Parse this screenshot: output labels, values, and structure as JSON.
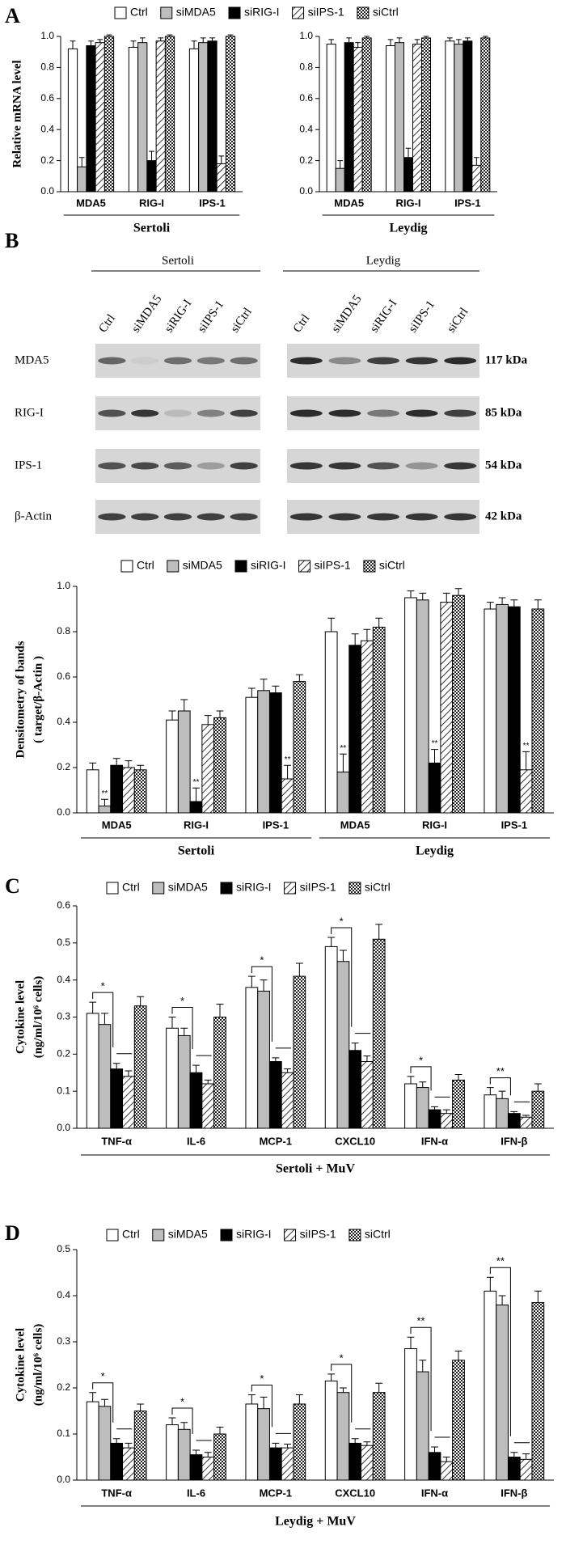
{
  "panel_labels": [
    "A",
    "B",
    "C",
    "D"
  ],
  "blot": {
    "groups": [
      {
        "name": "Sertoli",
        "lanes": [
          "Ctrl",
          "siMDA5",
          "siRIG-I",
          "siIPS-1",
          "siCtrl"
        ]
      },
      {
        "name": "Leydig",
        "lanes": [
          "Ctrl",
          "siMDA5",
          "siRIG-I",
          "siIPS-1",
          "siCtrl"
        ]
      }
    ],
    "rows": [
      {
        "name": "MDA5",
        "size": "117 kDa"
      },
      {
        "name": "RIG-I",
        "size": "85 kDa"
      },
      {
        "name": "IPS-1",
        "size": "54 kDa"
      },
      {
        "name": "β-Actin",
        "size": "42 kDa"
      }
    ]
  },
  "chart_data": [
    {
      "type": "bar",
      "ylabel": "Relative mRNA level",
      "groups": [
        {
          "name": "Sertoli",
          "categories": [
            "MDA5",
            "RIG-I",
            "IPS-1"
          ]
        },
        {
          "name": "Leydig",
          "categories": [
            "MDA5",
            "RIG-I",
            "IPS-1"
          ]
        }
      ],
      "ylim": [
        0,
        1
      ],
      "yticks": [
        {
          "value": 0,
          "label": "0.0"
        },
        0.2,
        0.4,
        0.6,
        0.8,
        {
          "value": 1,
          "label": "1.0"
        }
      ],
      "series": [
        {
          "name": "Ctrl",
          "color": "#ffffff",
          "values": [
            0.92,
            0.93,
            0.92,
            0.95,
            0.94,
            0.97
          ],
          "errors": [
            0.05,
            0.04,
            0.05,
            0.03,
            0.04,
            0.02
          ]
        },
        {
          "name": "siMDA5",
          "color": "#bdbdbd",
          "values": [
            0.16,
            0.96,
            0.96,
            0.15,
            0.96,
            0.95
          ],
          "errors": [
            0.06,
            0.03,
            0.03,
            0.05,
            0.03,
            0.03
          ]
        },
        {
          "name": "siRIG-I",
          "color": "#000000",
          "values": [
            0.94,
            0.2,
            0.97,
            0.96,
            0.22,
            0.97
          ],
          "errors": [
            0.03,
            0.06,
            0.02,
            0.03,
            0.06,
            0.02
          ]
        },
        {
          "name": "siIPS-1",
          "color": "#ffffff",
          "pattern": "hatch",
          "values": [
            0.96,
            0.97,
            0.18,
            0.93,
            0.95,
            0.17
          ],
          "errors": [
            0.02,
            0.02,
            0.05,
            0.03,
            0.03,
            0.05
          ]
        },
        {
          "name": "siCtrl",
          "color": "#ffffff",
          "pattern": "crosshatch",
          "values": [
            1,
            1,
            1,
            0.99,
            0.99,
            0.99
          ],
          "errors": [
            0.01,
            0.01,
            0.01,
            0.01,
            0.01,
            0.01
          ]
        }
      ]
    },
    {
      "type": "bar",
      "ylabel": [
        "Densitometry of bands",
        "( target/β-Actin )"
      ],
      "groups": [
        {
          "name": "Sertoli",
          "categories": [
            "MDA5",
            "RIG-I",
            "IPS-1"
          ]
        },
        {
          "name": "Leydig",
          "categories": [
            "MDA5",
            "RIG-I",
            "IPS-1"
          ]
        }
      ],
      "ylim": [
        0,
        1
      ],
      "yticks": [
        {
          "value": 0,
          "label": "0.0"
        },
        0.2,
        0.4,
        0.6,
        0.8,
        {
          "value": 1,
          "label": "1.0"
        }
      ],
      "series": [
        {
          "name": "Ctrl",
          "color": "#ffffff",
          "values": [
            0.19,
            0.41,
            0.51,
            0.8,
            0.95,
            0.9
          ],
          "errors": [
            0.03,
            0.04,
            0.04,
            0.06,
            0.03,
            0.03
          ]
        },
        {
          "name": "siMDA5",
          "color": "#bdbdbd",
          "values": [
            0.03,
            0.45,
            0.54,
            0.18,
            0.94,
            0.92
          ],
          "errors": [
            0.03,
            0.05,
            0.05,
            0.08,
            0.03,
            0.03
          ],
          "significance": [
            "**",
            null,
            null,
            "**",
            null,
            null
          ]
        },
        {
          "name": "siRIG-I",
          "color": "#000000",
          "values": [
            0.21,
            0.05,
            0.53,
            0.74,
            0.22,
            0.91
          ],
          "errors": [
            0.03,
            0.06,
            0.03,
            0.05,
            0.06,
            0.03
          ],
          "significance": [
            null,
            "**",
            null,
            null,
            "**",
            null
          ]
        },
        {
          "name": "siIPS-1",
          "color": "#ffffff",
          "pattern": "hatch",
          "values": [
            0.2,
            0.39,
            0.15,
            0.76,
            0.93,
            0.19
          ],
          "errors": [
            0.03,
            0.04,
            0.06,
            0.05,
            0.04,
            0.08
          ],
          "significance": [
            null,
            null,
            "**",
            null,
            null,
            "**"
          ]
        },
        {
          "name": "siCtrl",
          "color": "#ffffff",
          "pattern": "crosshatch",
          "values": [
            0.19,
            0.42,
            0.58,
            0.82,
            0.96,
            0.9
          ],
          "errors": [
            0.02,
            0.03,
            0.03,
            0.04,
            0.03,
            0.04
          ]
        }
      ]
    },
    {
      "type": "bar",
      "ylabel": [
        "Cytokine level",
        "(ng/ml/10⁶ cells)"
      ],
      "groups": [
        {
          "name": "Sertoli + MuV",
          "categories": [
            "TNF-α",
            "IL-6",
            "MCP-1",
            "CXCL10",
            "IFN-α",
            "IFN-β"
          ]
        }
      ],
      "ylim": [
        0,
        0.6
      ],
      "yticks": [
        {
          "value": 0,
          "label": "0.0"
        },
        0.1,
        0.2,
        0.3,
        0.4,
        0.5,
        0.6
      ],
      "comparisons": [
        "*",
        "*",
        "*",
        "*",
        "*",
        "**"
      ],
      "series": [
        {
          "name": "Ctrl",
          "color": "#ffffff",
          "values": [
            0.31,
            0.27,
            0.38,
            0.49,
            0.12,
            0.09
          ],
          "errors": [
            0.03,
            0.03,
            0.03,
            0.025,
            0.02,
            0.02
          ]
        },
        {
          "name": "siMDA5",
          "color": "#bdbdbd",
          "values": [
            0.28,
            0.25,
            0.37,
            0.45,
            0.11,
            0.08
          ],
          "errors": [
            0.03,
            0.02,
            0.03,
            0.03,
            0.015,
            0.02
          ]
        },
        {
          "name": "siRIG-I",
          "color": "#000000",
          "values": [
            0.16,
            0.15,
            0.18,
            0.21,
            0.05,
            0.04
          ],
          "errors": [
            0.015,
            0.02,
            0.01,
            0.02,
            0.008,
            0.005
          ]
        },
        {
          "name": "siIPS-1",
          "color": "#ffffff",
          "pattern": "hatch",
          "values": [
            0.14,
            0.12,
            0.15,
            0.18,
            0.04,
            0.03
          ],
          "errors": [
            0.015,
            0.01,
            0.01,
            0.015,
            0.01,
            0.005
          ]
        },
        {
          "name": "siCtrl",
          "color": "#ffffff",
          "pattern": "crosshatch",
          "values": [
            0.33,
            0.3,
            0.41,
            0.51,
            0.13,
            0.1
          ],
          "errors": [
            0.025,
            0.035,
            0.035,
            0.04,
            0.015,
            0.02
          ]
        }
      ]
    },
    {
      "type": "bar",
      "ylabel": [
        "Cytokine level",
        "(ng/ml/10⁶ cells)"
      ],
      "groups": [
        {
          "name": "Leydig + MuV",
          "categories": [
            "TNF-α",
            "IL-6",
            "MCP-1",
            "CXCL10",
            "IFN-α",
            "IFN-β"
          ]
        }
      ],
      "ylim": [
        0,
        0.5
      ],
      "yticks": [
        {
          "value": 0,
          "label": "0.0"
        },
        0.1,
        0.2,
        0.3,
        0.4,
        0.5
      ],
      "comparisons": [
        "*",
        "*",
        "*",
        "*",
        "**",
        "**"
      ],
      "series": [
        {
          "name": "Ctrl",
          "color": "#ffffff",
          "values": [
            0.17,
            0.12,
            0.165,
            0.215,
            0.285,
            0.41
          ],
          "errors": [
            0.02,
            0.015,
            0.02,
            0.015,
            0.025,
            0.03
          ]
        },
        {
          "name": "siMDA5",
          "color": "#bdbdbd",
          "values": [
            0.16,
            0.11,
            0.155,
            0.19,
            0.235,
            0.38
          ],
          "errors": [
            0.015,
            0.015,
            0.025,
            0.01,
            0.025,
            0.02
          ]
        },
        {
          "name": "siRIG-I",
          "color": "#000000",
          "values": [
            0.08,
            0.055,
            0.07,
            0.08,
            0.06,
            0.05
          ],
          "errors": [
            0.01,
            0.01,
            0.01,
            0.01,
            0.012,
            0.01
          ]
        },
        {
          "name": "siIPS-1",
          "color": "#ffffff",
          "pattern": "hatch",
          "values": [
            0.07,
            0.05,
            0.07,
            0.075,
            0.04,
            0.045
          ],
          "errors": [
            0.01,
            0.01,
            0.008,
            0.008,
            0.01,
            0.012
          ]
        },
        {
          "name": "siCtrl",
          "color": "#ffffff",
          "pattern": "crosshatch",
          "values": [
            0.15,
            0.1,
            0.165,
            0.19,
            0.26,
            0.385
          ],
          "errors": [
            0.015,
            0.015,
            0.02,
            0.02,
            0.02,
            0.025
          ]
        }
      ]
    }
  ]
}
